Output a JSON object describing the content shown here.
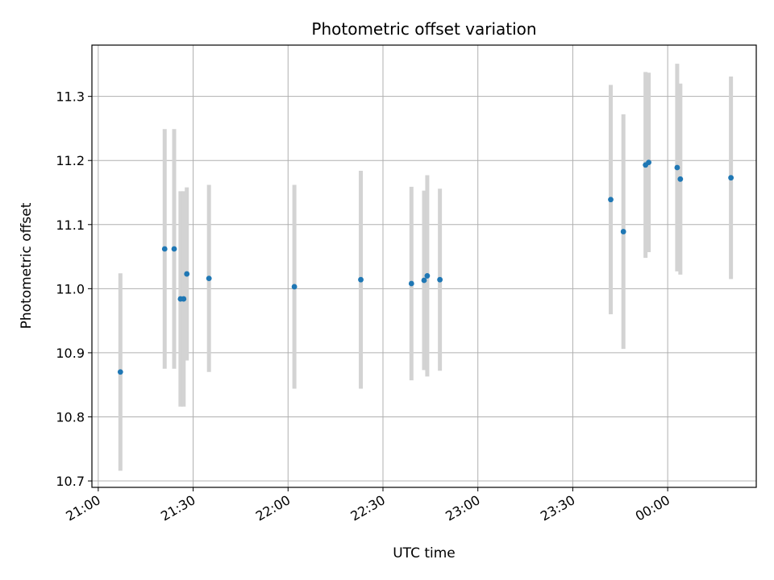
{
  "chart_data": {
    "type": "scatter",
    "title": "Photometric offset variation",
    "xlabel": "UTC time",
    "ylabel": "Photometric offset",
    "x_ticks": [
      "21:00",
      "21:30",
      "22:00",
      "22:30",
      "23:00",
      "23:30",
      "00:00"
    ],
    "y_ticks": [
      "10.7",
      "10.8",
      "10.9",
      "11.0",
      "11.1",
      "11.2",
      "11.3"
    ],
    "xlim": [
      "20:58",
      "00:28"
    ],
    "ylim": [
      10.69,
      11.38
    ],
    "grid": true,
    "errorbar_color": "#d3d3d3",
    "point_color": "#1f77b4",
    "points": [
      {
        "x": "21:07",
        "y": 10.87,
        "err": 0.154
      },
      {
        "x": "21:21",
        "y": 11.062,
        "err": 0.187
      },
      {
        "x": "21:24",
        "y": 11.062,
        "err": 0.187
      },
      {
        "x": "21:26",
        "y": 10.984,
        "err": 0.168
      },
      {
        "x": "21:27",
        "y": 10.984,
        "err": 0.168
      },
      {
        "x": "21:28",
        "y": 11.023,
        "err": 0.135
      },
      {
        "x": "21:35",
        "y": 11.016,
        "err": 0.146
      },
      {
        "x": "22:02",
        "y": 11.003,
        "err": 0.159
      },
      {
        "x": "22:23",
        "y": 11.014,
        "err": 0.17
      },
      {
        "x": "22:39",
        "y": 11.008,
        "err": 0.151
      },
      {
        "x": "22:43",
        "y": 11.013,
        "err": 0.14
      },
      {
        "x": "22:44",
        "y": 11.02,
        "err": 0.157
      },
      {
        "x": "22:48",
        "y": 11.014,
        "err": 0.142
      },
      {
        "x": "23:42",
        "y": 11.139,
        "err": 0.179
      },
      {
        "x": "23:46",
        "y": 11.089,
        "err": 0.183
      },
      {
        "x": "23:53",
        "y": 11.193,
        "err": 0.145
      },
      {
        "x": "23:54",
        "y": 11.197,
        "err": 0.14
      },
      {
        "x": "00:03",
        "y": 11.189,
        "err": 0.162
      },
      {
        "x": "00:04",
        "y": 11.171,
        "err": 0.149
      },
      {
        "x": "00:20",
        "y": 11.173,
        "err": 0.158
      }
    ]
  }
}
